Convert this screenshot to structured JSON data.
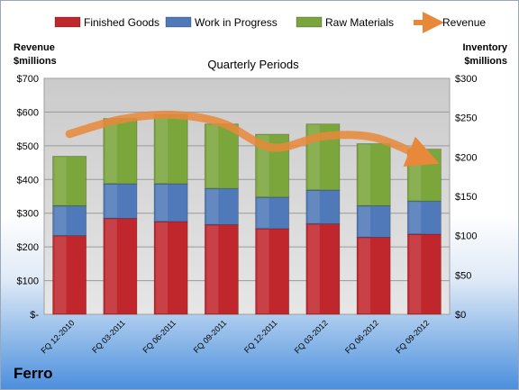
{
  "company": "Ferro",
  "chart_data": {
    "type": "bar",
    "stacked": true,
    "title": "Quarterly Periods",
    "left_axis_title": [
      "Revenue",
      "$millions"
    ],
    "right_axis_title": [
      "Inventory",
      "$millions"
    ],
    "categories": [
      "FQ 12-2010",
      "FQ 03-2011",
      "FQ 06-2011",
      "FQ 09-2011",
      "FQ 12-2011",
      "FQ 03-2012",
      "FQ 06-2012",
      "FQ 09-2012"
    ],
    "left_axis": {
      "min": 0,
      "max": 700,
      "step": 100,
      "tick_labels": [
        "$-",
        "$100",
        "$200",
        "$300",
        "$400",
        "$500",
        "$600",
        "$700"
      ]
    },
    "right_axis": {
      "min": 0,
      "max": 300,
      "step": 50,
      "tick_labels": [
        "$0",
        "$50",
        "$100",
        "$150",
        "$200",
        "$250",
        "$300"
      ]
    },
    "series": [
      {
        "name": "Finished Goods",
        "axis": "right",
        "color": "#c0272d",
        "values": [
          100,
          122,
          118,
          114,
          109,
          115,
          98,
          102
        ]
      },
      {
        "name": "Work in Progress",
        "axis": "right",
        "color": "#4f79b8",
        "values": [
          38,
          44,
          48,
          46,
          40,
          43,
          40,
          42
        ]
      },
      {
        "name": "Raw Materials",
        "axis": "right",
        "color": "#7aa63c",
        "values": [
          63,
          83,
          88,
          82,
          80,
          84,
          79,
          66
        ]
      },
      {
        "name": "Revenue",
        "axis": "left",
        "type": "line",
        "color": "#e8883a",
        "values": [
          535,
          578,
          592,
          568,
          495,
          528,
          525,
          465
        ]
      }
    ],
    "grid": true,
    "legend_position": "top"
  }
}
